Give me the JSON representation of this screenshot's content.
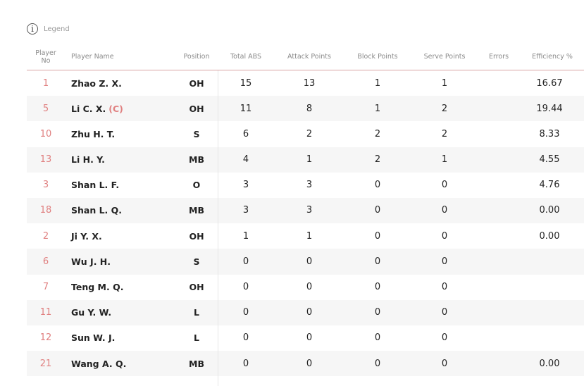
{
  "legend": {
    "icon": "info-icon",
    "glyph": "i",
    "label": "Legend"
  },
  "columns": {
    "no_line1": "Player",
    "no_line2": "No",
    "name": "Player Name",
    "position": "Position",
    "total_abs": "Total ABS",
    "attack": "Attack Points",
    "block": "Block Points",
    "serve": "Serve Points",
    "errors": "Errors",
    "efficiency": "Efficiency %"
  },
  "rows": [
    {
      "no": "1",
      "name": "Zhao Z. X.",
      "captain": "",
      "pos": "OH",
      "abs": "15",
      "atk": "13",
      "blk": "1",
      "srv": "1",
      "err": "",
      "eff": "16.67"
    },
    {
      "no": "5",
      "name": "Li C. X.",
      "captain": "(C)",
      "pos": "OH",
      "abs": "11",
      "atk": "8",
      "blk": "1",
      "srv": "2",
      "err": "",
      "eff": "19.44"
    },
    {
      "no": "10",
      "name": "Zhu H. T.",
      "captain": "",
      "pos": "S",
      "abs": "6",
      "atk": "2",
      "blk": "2",
      "srv": "2",
      "err": "",
      "eff": "8.33"
    },
    {
      "no": "13",
      "name": "Li H. Y.",
      "captain": "",
      "pos": "MB",
      "abs": "4",
      "atk": "1",
      "blk": "2",
      "srv": "1",
      "err": "",
      "eff": "4.55"
    },
    {
      "no": "3",
      "name": "Shan L. F.",
      "captain": "",
      "pos": "O",
      "abs": "3",
      "atk": "3",
      "blk": "0",
      "srv": "0",
      "err": "",
      "eff": "4.76"
    },
    {
      "no": "18",
      "name": "Shan L. Q.",
      "captain": "",
      "pos": "MB",
      "abs": "3",
      "atk": "3",
      "blk": "0",
      "srv": "0",
      "err": "",
      "eff": "0.00"
    },
    {
      "no": "2",
      "name": "Ji Y. X.",
      "captain": "",
      "pos": "OH",
      "abs": "1",
      "atk": "1",
      "blk": "0",
      "srv": "0",
      "err": "",
      "eff": "0.00"
    },
    {
      "no": "6",
      "name": "Wu J. H.",
      "captain": "",
      "pos": "S",
      "abs": "0",
      "atk": "0",
      "blk": "0",
      "srv": "0",
      "err": "",
      "eff": ""
    },
    {
      "no": "7",
      "name": "Teng M. Q.",
      "captain": "",
      "pos": "OH",
      "abs": "0",
      "atk": "0",
      "blk": "0",
      "srv": "0",
      "err": "",
      "eff": ""
    },
    {
      "no": "11",
      "name": "Gu Y. W.",
      "captain": "",
      "pos": "L",
      "abs": "0",
      "atk": "0",
      "blk": "0",
      "srv": "0",
      "err": "",
      "eff": ""
    },
    {
      "no": "12",
      "name": "Sun W. J.",
      "captain": "",
      "pos": "L",
      "abs": "0",
      "atk": "0",
      "blk": "0",
      "srv": "0",
      "err": "",
      "eff": ""
    },
    {
      "no": "21",
      "name": "Wang A. Q.",
      "captain": "",
      "pos": "MB",
      "abs": "0",
      "atk": "0",
      "blk": "0",
      "srv": "0",
      "err": "",
      "eff": "0.00"
    }
  ],
  "colors": {
    "accent": "#e08080",
    "header_border": "#d9a3a3",
    "alt_row": "#f6f6f6"
  }
}
